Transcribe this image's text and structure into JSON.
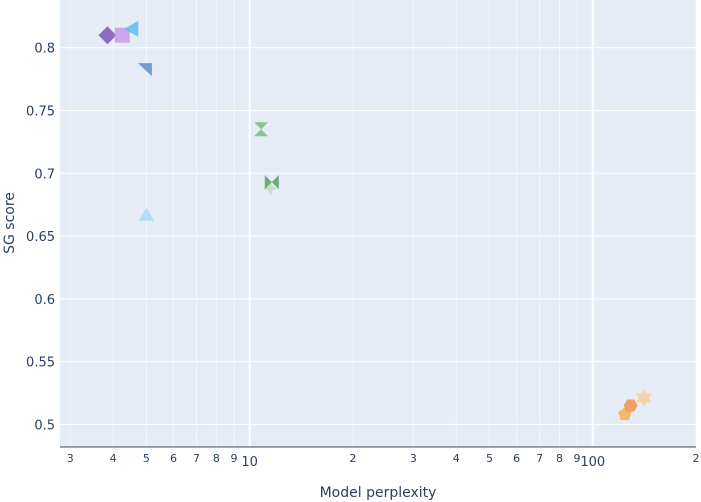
{
  "chart_data": {
    "type": "scatter",
    "xlabel": "Model perplexity",
    "ylabel": "SG score",
    "xscale": "log",
    "xlim": [
      2.8,
      200
    ],
    "ylim": [
      0.482,
      0.838
    ],
    "grid": true,
    "legend": "none",
    "x_major_ticks": [
      {
        "value": 10,
        "label": "10"
      },
      {
        "value": 100,
        "label": "100"
      }
    ],
    "x_minor_ticks": [
      {
        "value": 3,
        "label": "3"
      },
      {
        "value": 4,
        "label": "4"
      },
      {
        "value": 5,
        "label": "5"
      },
      {
        "value": 6,
        "label": "6"
      },
      {
        "value": 7,
        "label": "7"
      },
      {
        "value": 8,
        "label": "8"
      },
      {
        "value": 9,
        "label": "9"
      },
      {
        "value": 20,
        "label": "2"
      },
      {
        "value": 30,
        "label": "3"
      },
      {
        "value": 40,
        "label": "4"
      },
      {
        "value": 50,
        "label": "5"
      },
      {
        "value": 60,
        "label": "6"
      },
      {
        "value": 70,
        "label": "7"
      },
      {
        "value": 80,
        "label": "8"
      },
      {
        "value": 90,
        "label": "9"
      },
      {
        "value": 200,
        "label": "2"
      }
    ],
    "y_ticks": [
      {
        "value": 0.5,
        "label": "0.5"
      },
      {
        "value": 0.55,
        "label": "0.55"
      },
      {
        "value": 0.6,
        "label": "0.6"
      },
      {
        "value": 0.65,
        "label": "0.65"
      },
      {
        "value": 0.7,
        "label": "0.7"
      },
      {
        "value": 0.75,
        "label": "0.75"
      },
      {
        "value": 0.8,
        "label": "0.8"
      }
    ],
    "points": [
      {
        "x": 3.85,
        "y": 0.81,
        "symbol": "diamond",
        "color": "#7e57b3",
        "opacity": 0.85
      },
      {
        "x": 4.25,
        "y": 0.81,
        "symbol": "square",
        "color": "#c79be8",
        "opacity": 0.85
      },
      {
        "x": 4.55,
        "y": 0.815,
        "symbol": "triangle-left",
        "color": "#5bc0f0",
        "opacity": 0.85
      },
      {
        "x": 4.95,
        "y": 0.783,
        "symbol": "triangle-ne",
        "color": "#5b8ec4",
        "opacity": 0.85
      },
      {
        "x": 5.0,
        "y": 0.667,
        "symbol": "triangle-up",
        "color": "#a8dcf5",
        "opacity": 0.85
      },
      {
        "x": 10.8,
        "y": 0.735,
        "symbol": "hourglass",
        "color": "#7dbb87",
        "opacity": 0.85
      },
      {
        "x": 11.5,
        "y": 0.688,
        "symbol": "star-diamond",
        "color": "#b9dfb8",
        "opacity": 0.85
      },
      {
        "x": 11.6,
        "y": 0.693,
        "symbol": "bowtie",
        "color": "#5f9a66",
        "opacity": 0.85
      },
      {
        "x": 124,
        "y": 0.508,
        "symbol": "pentagon",
        "color": "#f8b04c",
        "opacity": 0.85
      },
      {
        "x": 129,
        "y": 0.515,
        "symbol": "hexagon",
        "color": "#f2924a",
        "opacity": 0.85
      },
      {
        "x": 141,
        "y": 0.521,
        "symbol": "star-hexagram",
        "color": "#f8cf9c",
        "opacity": 0.85
      }
    ]
  }
}
